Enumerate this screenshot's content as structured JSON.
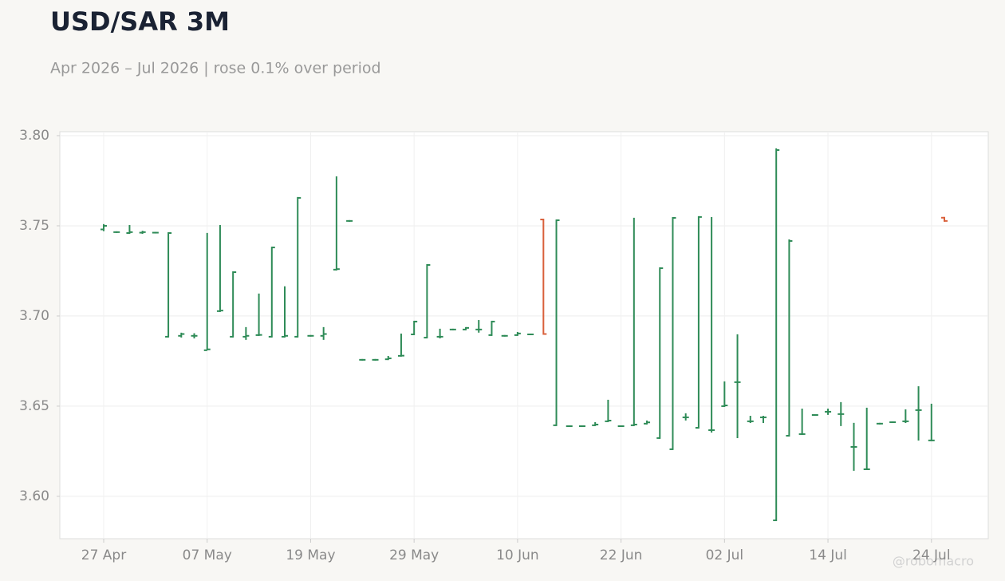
{
  "chart_data": {
    "type": "ohlc",
    "title": "USD/SAR 3M",
    "subtitle": "Apr 2026 – Jul 2026 | rose 0.1% over period",
    "watermark": "@robomacro",
    "categories": [
      "27 Apr",
      null,
      null,
      null,
      null,
      null,
      null,
      null,
      "07 May",
      null,
      null,
      null,
      null,
      null,
      null,
      null,
      "19 May",
      null,
      null,
      null,
      null,
      null,
      null,
      null,
      "29 May",
      null,
      null,
      null,
      null,
      null,
      null,
      null,
      "10 Jun",
      null,
      null,
      null,
      null,
      null,
      null,
      null,
      "22 Jun",
      null,
      null,
      null,
      null,
      null,
      null,
      null,
      "02 Jul",
      null,
      null,
      null,
      null,
      null,
      null,
      null,
      "14 Jul",
      null,
      null,
      null,
      null,
      null,
      null,
      null,
      "24 Jul",
      null
    ],
    "open": [
      3.748,
      3.7465,
      3.746,
      3.7462,
      3.7462,
      3.6885,
      3.689,
      3.689,
      3.681,
      3.7027,
      3.6885,
      3.6885,
      3.6894,
      3.6885,
      3.6885,
      3.6885,
      3.689,
      3.689,
      3.7257,
      3.7527,
      3.6757,
      3.6757,
      3.676,
      3.6779,
      3.6898,
      3.688,
      3.6885,
      3.6925,
      3.6925,
      3.6925,
      3.6894,
      3.689,
      3.6894,
      3.6898,
      3.7535,
      3.6394,
      3.6389,
      3.6389,
      3.6394,
      3.6416,
      3.6389,
      3.6394,
      3.6403,
      3.6323,
      3.6261,
      3.6438,
      3.638,
      3.6367,
      3.65,
      3.6633,
      3.6416,
      3.6438,
      3.5867,
      3.6336,
      3.6345,
      3.6451,
      3.6469,
      3.6456,
      3.6274,
      3.615,
      3.6403,
      3.6411,
      3.6416,
      3.6478,
      3.631,
      3.7545
    ],
    "high": [
      3.7505,
      3.7465,
      3.75,
      3.7468,
      3.7462,
      3.746,
      3.6903,
      3.69,
      3.7456,
      3.75,
      3.7243,
      3.6934,
      3.712,
      3.738,
      3.716,
      3.7655,
      3.689,
      3.6934,
      3.777,
      3.7527,
      3.6757,
      3.6757,
      3.6774,
      3.6898,
      3.6969,
      3.7283,
      3.6925,
      3.6925,
      3.6934,
      3.6973,
      3.6969,
      3.689,
      3.6907,
      3.6898,
      3.7535,
      3.7531,
      3.6389,
      3.6389,
      3.6407,
      3.6531,
      3.6389,
      3.754,
      3.6416,
      3.7265,
      3.7544,
      3.6456,
      3.7549,
      3.7544,
      3.6633,
      3.6894,
      3.6442,
      3.6442,
      3.7925,
      3.742,
      3.6482,
      3.6451,
      3.6482,
      3.6518,
      3.6403,
      3.6487,
      3.6403,
      3.6411,
      3.6478,
      3.6606,
      3.6509,
      3.7545
    ],
    "low": [
      3.7475,
      3.7465,
      3.746,
      3.746,
      3.7462,
      3.6885,
      3.6885,
      3.688,
      3.6814,
      3.7027,
      3.6885,
      3.6872,
      3.6894,
      3.6885,
      3.6885,
      3.6885,
      3.689,
      3.6872,
      3.7257,
      3.7527,
      3.6757,
      3.6757,
      3.676,
      3.6779,
      3.6898,
      3.688,
      3.688,
      3.6925,
      3.6925,
      3.6912,
      3.6894,
      3.689,
      3.6894,
      3.6898,
      3.69,
      3.6394,
      3.6389,
      3.6389,
      3.6394,
      3.6416,
      3.6389,
      3.6394,
      3.6403,
      3.6323,
      3.6261,
      3.6425,
      3.638,
      3.6358,
      3.65,
      3.6327,
      3.6411,
      3.6411,
      3.5867,
      3.6336,
      3.6345,
      3.6451,
      3.6456,
      3.6394,
      3.6146,
      3.615,
      3.6403,
      3.6411,
      3.6411,
      3.6314,
      3.631,
      3.7527
    ],
    "close": [
      3.75,
      3.7465,
      3.7465,
      3.7465,
      3.7462,
      3.746,
      3.69,
      3.689,
      3.6815,
      3.703,
      3.7243,
      3.689,
      3.6895,
      3.738,
      3.689,
      3.7655,
      3.689,
      3.69,
      3.726,
      3.7527,
      3.6757,
      3.6757,
      3.6765,
      3.678,
      3.6969,
      3.7283,
      3.6885,
      3.6925,
      3.6934,
      3.6925,
      3.6969,
      3.689,
      3.6903,
      3.6898,
      3.69,
      3.7531,
      3.6389,
      3.6389,
      3.6398,
      3.642,
      3.6389,
      3.6398,
      3.641,
      3.7265,
      3.7544,
      3.6438,
      3.7549,
      3.6367,
      3.6504,
      3.6633,
      3.6416,
      3.6438,
      3.792,
      3.7416,
      3.6345,
      3.6451,
      3.6469,
      3.6456,
      3.6274,
      3.615,
      3.6403,
      3.6411,
      3.6416,
      3.6478,
      3.631,
      3.7527
    ],
    "up_color": "#2e8b57",
    "down_color": "#d9603b",
    "ylim": [
      3.5765,
      3.8022
    ],
    "yticks": [
      {
        "value": 3.6,
        "label": "3.60"
      },
      3.65,
      {
        "value": 3.7,
        "label": "3.70"
      },
      3.75,
      {
        "value": 3.8,
        "label": "3.80"
      }
    ],
    "grid": true
  }
}
